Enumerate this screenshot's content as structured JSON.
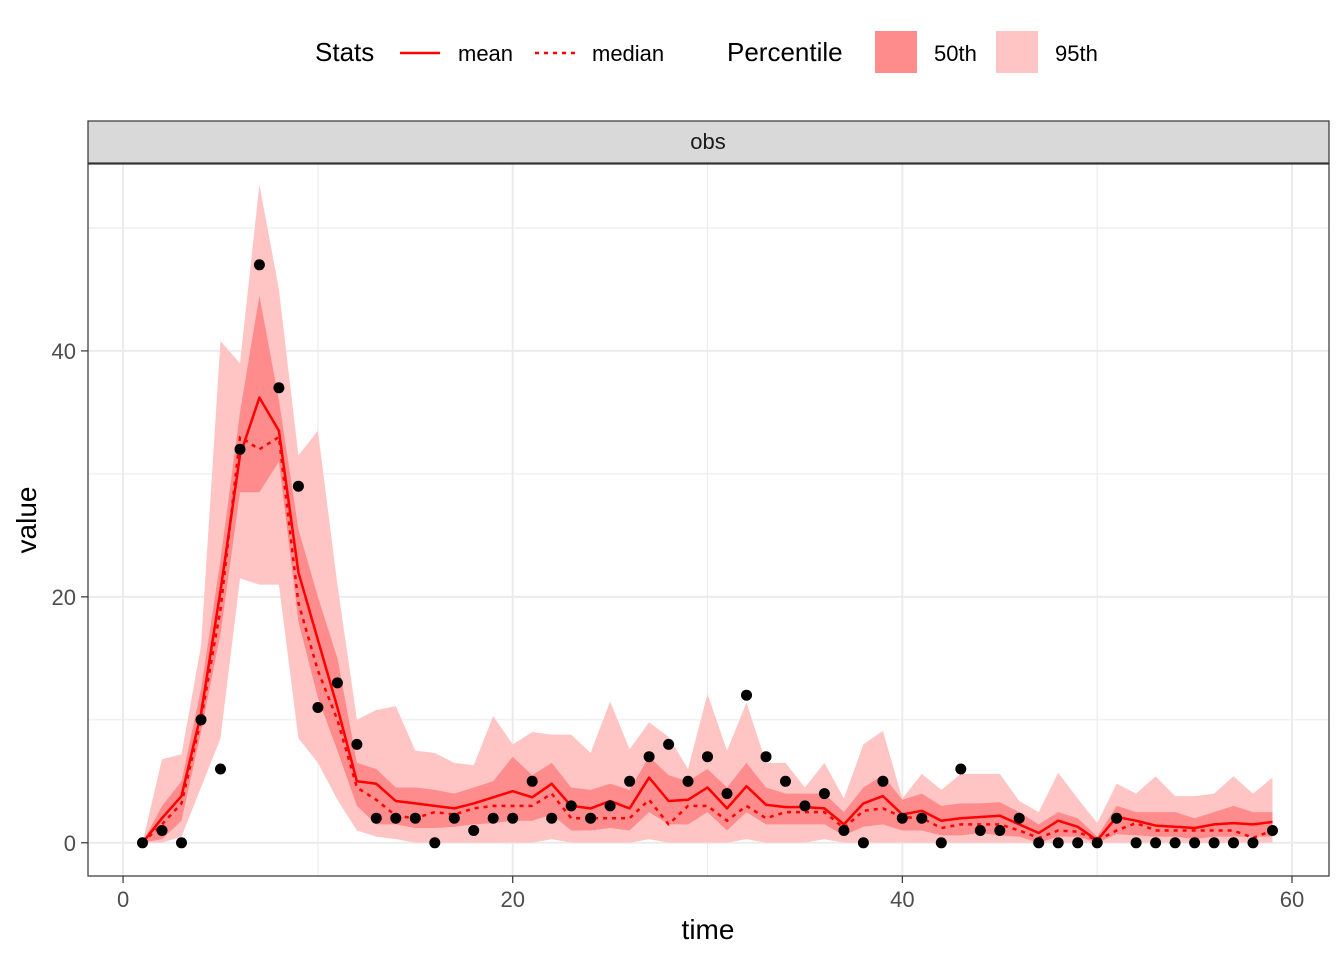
{
  "legend": {
    "stats_title": "Stats",
    "stats_items": [
      {
        "label": "mean",
        "linestyle": "solid"
      },
      {
        "label": "median",
        "linestyle": "dotted"
      }
    ],
    "percentile_title": "Percentile",
    "percentile_items": [
      {
        "label": "50th",
        "color": "#ff8c8c"
      },
      {
        "label": "95th",
        "color": "#ffc4c4"
      }
    ]
  },
  "colors": {
    "line": "#ff0000",
    "band50": "#ff8c8c",
    "band95": "#ffc4c4",
    "points": "#000000",
    "grid": "#ebebeb",
    "strip": "#d9d9d9",
    "border": "#333333"
  },
  "chart_data": {
    "type": "line",
    "facet": "obs",
    "xlabel": "time",
    "ylabel": "value",
    "xlim": [
      -1.8,
      61.9
    ],
    "ylim": [
      -2.7,
      55.2
    ],
    "x_ticks": [
      0,
      20,
      40,
      60
    ],
    "y_ticks": [
      0,
      20,
      40
    ],
    "grid": true,
    "legend_position": "top",
    "x": [
      1,
      2,
      3,
      4,
      5,
      6,
      7,
      8,
      9,
      10,
      11,
      12,
      13,
      14,
      15,
      16,
      17,
      18,
      19,
      20,
      21,
      22,
      23,
      24,
      25,
      26,
      27,
      28,
      29,
      30,
      31,
      32,
      33,
      34,
      35,
      36,
      37,
      38,
      39,
      40,
      41,
      42,
      43,
      44,
      45,
      46,
      47,
      48,
      49,
      50,
      51,
      52,
      53,
      54,
      55,
      56,
      57,
      58,
      59
    ],
    "series": [
      {
        "name": "mean",
        "values": [
          0,
          2,
          3.8,
          10.5,
          20.5,
          31.5,
          36.2,
          33.5,
          22,
          16.5,
          11,
          5,
          4.8,
          3.4,
          3.2,
          3,
          2.8,
          3.2,
          3.7,
          4.2,
          3.7,
          4.8,
          3,
          2.8,
          3.4,
          2.8,
          5.3,
          3.4,
          3.5,
          4.5,
          2.8,
          4.6,
          3.1,
          2.9,
          2.9,
          2.8,
          1.5,
          3.2,
          3.8,
          2.3,
          2.6,
          1.8,
          2,
          2.1,
          2.2,
          1.5,
          0.8,
          1.8,
          1.3,
          0.2,
          2.1,
          1.8,
          1.4,
          1.3,
          1.2,
          1.5,
          1.6,
          1.5,
          1.7
        ]
      },
      {
        "name": "median",
        "values": [
          0,
          1.5,
          3.2,
          10,
          19,
          33,
          32,
          33,
          19.5,
          14,
          10,
          4.5,
          3.5,
          2.2,
          2,
          2.5,
          2.3,
          2.8,
          3,
          3,
          3,
          4,
          2,
          2,
          2,
          2,
          3.5,
          1.5,
          3,
          3,
          1.8,
          3,
          2,
          2.5,
          2.5,
          2.5,
          1.2,
          2.6,
          2.8,
          2.1,
          2,
          1.2,
          1.5,
          1.5,
          1.5,
          1,
          0.4,
          1,
          0.9,
          0.2,
          1,
          1.6,
          1,
          1,
          1,
          1,
          1,
          0.4,
          1
        ]
      }
    ],
    "band50": {
      "lower": [
        0,
        0.3,
        1.8,
        9,
        17,
        28.5,
        28.5,
        31,
        18,
        11.8,
        7.5,
        3,
        1.5,
        1.5,
        1.2,
        1.2,
        1.3,
        1.5,
        1.6,
        1.8,
        1.8,
        2.3,
        1,
        1,
        1.2,
        1,
        2.5,
        1.5,
        1.5,
        2.5,
        1,
        2.5,
        1.5,
        1.5,
        1.5,
        1.5,
        0.6,
        1.3,
        1.5,
        1,
        1,
        0.6,
        0.6,
        0.8,
        0.6,
        0.5,
        0,
        0.5,
        0.5,
        0,
        0.7,
        0.6,
        0.5,
        0.5,
        0.3,
        0.5,
        0.5,
        0.5,
        0.5
      ],
      "upper": [
        0,
        3,
        5,
        12.5,
        23,
        35,
        44.5,
        36,
        25.5,
        20,
        15,
        6.5,
        6,
        4.5,
        4.5,
        4.3,
        4,
        4.5,
        5,
        7,
        5.5,
        6.5,
        4.5,
        4.3,
        4.8,
        4.3,
        7,
        5.5,
        5,
        6,
        4.5,
        6.5,
        4.5,
        4,
        4,
        4,
        2.5,
        4.5,
        5.5,
        3.5,
        4,
        3,
        3.2,
        3.2,
        3.3,
        2.5,
        1.5,
        2.5,
        2,
        0.5,
        3,
        2.5,
        2.5,
        2.5,
        2,
        2.5,
        3,
        2.5,
        2.5
      ]
    },
    "band95": {
      "lower": [
        0,
        0,
        0.5,
        4.5,
        8.5,
        21.5,
        21,
        21,
        8.5,
        6.5,
        3.5,
        1,
        0.5,
        0.3,
        0,
        0,
        0,
        0,
        0,
        0,
        0,
        0.3,
        0,
        0,
        0,
        0,
        0.3,
        0,
        0,
        0,
        0,
        0.3,
        0,
        0,
        0,
        0.3,
        0,
        0,
        0,
        0,
        0,
        0,
        0,
        0,
        0,
        0,
        0,
        0,
        0,
        0,
        0,
        0,
        0,
        0,
        0,
        0,
        0,
        0,
        0
      ],
      "upper": [
        0,
        6.8,
        7.2,
        16,
        40.8,
        39,
        53.5,
        45,
        31.5,
        33.5,
        21,
        10,
        10.8,
        11.1,
        7.5,
        7.3,
        6.5,
        6.3,
        10.3,
        8,
        9,
        8.8,
        8.8,
        7.3,
        11.5,
        7.6,
        9.8,
        8.6,
        6,
        12.1,
        7.5,
        11.4,
        6.5,
        6.5,
        4.5,
        6.5,
        3.6,
        8,
        9.1,
        3.6,
        5.6,
        4.3,
        5.6,
        5.6,
        5.6,
        3.4,
        2.5,
        5.7,
        3.6,
        1.6,
        4.8,
        4,
        5.4,
        3.8,
        3.8,
        4,
        5.4,
        4,
        5.3
      ]
    },
    "points": {
      "x": [
        1,
        2,
        3,
        4,
        5,
        6,
        7,
        8,
        9,
        10,
        11,
        12,
        13,
        14,
        15,
        16,
        17,
        18,
        19,
        20,
        21,
        22,
        23,
        24,
        25,
        26,
        27,
        28,
        29,
        30,
        31,
        32,
        33,
        34,
        35,
        36,
        37,
        38,
        39,
        40,
        41,
        42,
        43,
        44,
        45,
        46,
        47,
        48,
        49,
        50,
        51,
        52,
        53,
        54,
        55,
        56,
        57,
        58,
        59
      ],
      "y": [
        0,
        1,
        0,
        10,
        6,
        32,
        47,
        37,
        29,
        11,
        13,
        8,
        2,
        2,
        2,
        0,
        2,
        1,
        2,
        2,
        5,
        2,
        3,
        2,
        3,
        5,
        7,
        8,
        5,
        7,
        4,
        12,
        7,
        5,
        3,
        4,
        1,
        0,
        5,
        2,
        2,
        0,
        6,
        1,
        1,
        2,
        0,
        0,
        0,
        0,
        2,
        0,
        0,
        0,
        0,
        0,
        0,
        0,
        1
      ]
    }
  }
}
